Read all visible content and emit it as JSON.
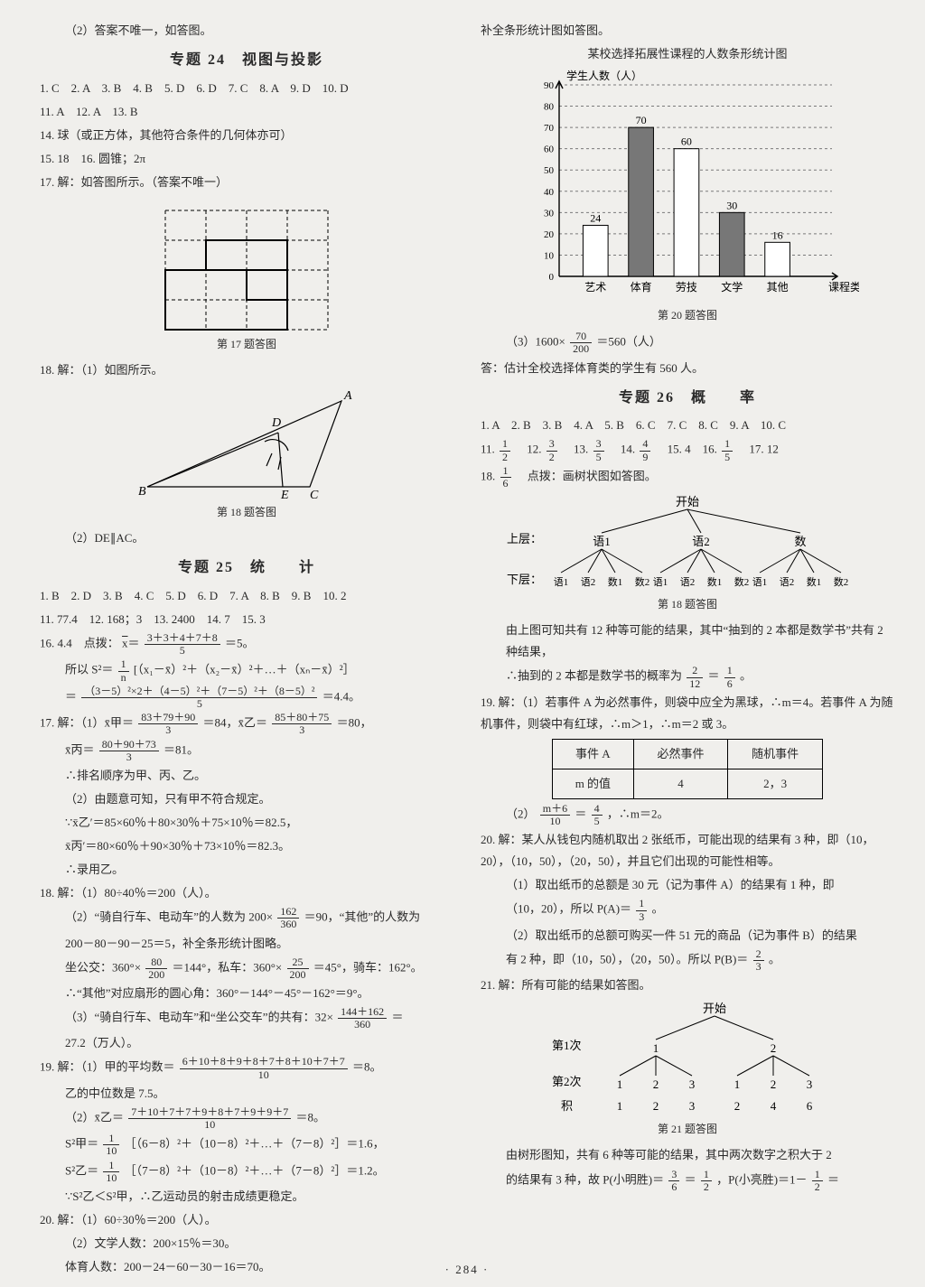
{
  "left": {
    "line0": "（2）答案不唯一，如答图。",
    "title24": "专题 24　视图与投影",
    "ans24a": "1. C　2. A　3. B　4. B　5. D　6. D　7. C　8. A　9. D　10. D",
    "ans24b": "11. A　12. A　13. B",
    "ans24c": "14. 球（或正方体，其他符合条件的几何体亦可）",
    "ans24d": "15. 18　16. 圆锥；2π",
    "ans24e": "17. 解：如答图所示。（答案不唯一）",
    "cap17": "第 17 题答图",
    "ans24f": "18. 解：（1）如图所示。",
    "cap18": "第 18 题答图",
    "ans24g": "（2）DE∥AC。",
    "title25": "专题 25　统　　计",
    "ans25a": "1. B　2. D　3. B　4. C　5. D　6. D　7. A　8. B　9. B　10. 2",
    "ans25b": "11. 77.4　12. 168；3　13. 2400　14. 7　15. 3",
    "q16a": "16. 4.4　点拨：",
    "q16a2": "＝5。",
    "q16_xbar_num": "3＋3＋4＋7＋8",
    "q16_xbar_den": "5",
    "q16b_pre": "所以 S²＝",
    "q16b_num": "1",
    "q16b_den": "n",
    "q16b_tail": " [（x₁－x̄）²＋（x₂－x̄）²＋…＋（xₙ－x̄）²］",
    "q16c_num": "（3－5）²×2＋（4－5）²＋（7－5）²＋（8－5）²",
    "q16c_den": "5",
    "q16c_tail": "＝4.4。",
    "q17a_pre": "17. 解：（1）x̄甲＝",
    "q17a_num": "83＋79＋90",
    "q17a_den": "3",
    "q17a_mid": "＝84，x̄乙＝",
    "q17a_num2": "85＋80＋75",
    "q17a_den2": "3",
    "q17a_tail": "＝80，",
    "q17b_pre": "x̄丙＝",
    "q17b_num": "80＋90＋73",
    "q17b_den": "3",
    "q17b_tail": "＝81。",
    "q17c": "∴排名顺序为甲、丙、乙。",
    "q17d": "（2）由题意可知，只有甲不符合规定。",
    "q17e": "∵x̄乙′＝85×60％＋80×30％＋75×10％＝82.5，",
    "q17f": "x̄丙′＝80×60％＋90×30％＋73×10％＝82.3。",
    "q17g": "∴录用乙。",
    "q18a": "18. 解：（1）80÷40％＝200（人）。",
    "q18b_pre": "（2）“骑自行车、电动车”的人数为 200×",
    "q18b_num": "162",
    "q18b_den": "360",
    "q18b_tail": "＝90，“其他”的人数为",
    "q18c": "200－80－90－25＝5，补全条形统计图略。",
    "q18d_pre": "坐公交：360°×",
    "q18d_num": "80",
    "q18d_den": "200",
    "q18d_mid": "＝144°，私车：360°×",
    "q18d_num2": "25",
    "q18d_den2": "200",
    "q18d_tail": "＝45°，骑车：162°。",
    "q18e": "∴“其他”对应扇形的圆心角：360°－144°－45°－162°＝9°。",
    "q18f_pre": "（3）“骑自行车、电动车”和“坐公交车”的共有：32×",
    "q18f_num": "144＋162",
    "q18f_den": "360",
    "q18f_tail": "＝",
    "q18g": "27.2（万人）。",
    "q19a_pre": "19. 解：（1）甲的平均数＝",
    "q19a_num": "6＋10＋8＋9＋8＋7＋8＋10＋7＋7",
    "q19a_den": "10",
    "q19a_tail": "＝8。",
    "q19b": "乙的中位数是 7.5。",
    "q19c_pre": "（2）x̄乙＝",
    "q19c_num": "7＋10＋7＋7＋9＋8＋7＋9＋9＋7",
    "q19c_den": "10",
    "q19c_tail": "＝8。",
    "q19d_pre": "S²甲＝",
    "q19d_num": "1",
    "q19d_den": "10",
    "q19d_tail": "［（6－8）²＋（10－8）²＋…＋（7－8）²］＝1.6，",
    "q19e_pre": "S²乙＝",
    "q19e_num": "1",
    "q19e_den": "10",
    "q19e_tail": "［（7－8）²＋（10－8）²＋…＋（7－8）²］＝1.2。",
    "q19f": "∵S²乙＜S²甲，∴乙运动员的射击成绩更稳定。",
    "q20a": "20. 解：（1）60÷30％＝200（人）。",
    "q20b": "（2）文学人数：200×15％＝30。",
    "q20c": "体育人数：200－24－60－30－16＝70。"
  },
  "right": {
    "line0": "补全条形统计图如答图。",
    "chartTitle": "某校选择拓展性课程的人数条形统计图",
    "yLabel": "学生人数（人）",
    "xLabel": "课程类别",
    "cap20": "第 20 题答图",
    "chart": {
      "type": "bar",
      "categories": [
        "艺术",
        "体育",
        "劳技",
        "文学",
        "其他"
      ],
      "values": [
        24,
        70,
        60,
        30,
        16
      ],
      "bar_colors": [
        "#ffffff",
        "#777777",
        "#ffffff",
        "#777777",
        "#ffffff"
      ],
      "ylim": [
        0,
        90
      ],
      "ytick_step": 10,
      "grid_color": "#7a7a7a",
      "axis_color": "#000000",
      "bar_width": 0.55,
      "label_fontsize": 12
    },
    "q20c_pre": "（3）1600×",
    "q20c_num": "70",
    "q20c_den": "200",
    "q20c_tail": "＝560（人）",
    "q20d": "答：估计全校选择体育类的学生有 560 人。",
    "title26": "专题 26　概　　率",
    "ans26a": "1. A　2. B　3. B　4. A　5. B　6. C　7. C　8. C　9. A　10. C",
    "ans26b_pre": "11. ",
    "f11n": "1",
    "f11d": "2",
    "ans26b_12": "　12. ",
    "f12n": "3",
    "f12d": "2",
    "ans26b_13": "　13. ",
    "f13n": "3",
    "f13d": "5",
    "ans26b_14": "　14. ",
    "f14n": "4",
    "f14d": "9",
    "ans26b_15": "　15. 4　16. ",
    "f16n": "1",
    "f16d": "5",
    "ans26b_17": "　17. 12",
    "q18a_pre": "18. ",
    "q18a_num": "1",
    "q18a_den": "6",
    "q18a_tail": "　点拨：画树状图如答图。",
    "tree18": {
      "root": "开始",
      "levelA": "上层：",
      "levelB": "下层：",
      "top": [
        "语1",
        "语2",
        "数"
      ],
      "bottomSet": [
        "语1",
        "语2",
        "数1",
        "数2"
      ]
    },
    "cap18r": "第 18 题答图",
    "q18b": "由上图可知共有 12 种等可能的结果，其中“抽到的 2 本都是数学书”共有 2 种结果，",
    "q18c_pre": "∴抽到的 2 本都是数学书的概率为",
    "q18c_num": "2",
    "q18c_den": "12",
    "q18c_mid": "＝",
    "q18c_num2": "1",
    "q18c_den2": "6",
    "q18c_tail": "。",
    "q19a": "19. 解：（1）若事件 A 为必然事件，则袋中应全为黑球，∴m＝4。若事件 A 为随机事件，则袋中有红球，∴m＞1，∴m＝2 或 3。",
    "table19": {
      "headers": [
        "事件 A",
        "必然事件",
        "随机事件"
      ],
      "row": [
        "m 的值",
        "4",
        "2，3"
      ]
    },
    "q19b_pre": "（2）",
    "q19b_num": "m＋6",
    "q19b_den": "10",
    "q19b_mid": "＝",
    "q19b_num2": "4",
    "q19b_den2": "5",
    "q19b_tail": "，∴m＝2。",
    "q20a": "20. 解：某人从钱包内随机取出 2 张纸币，可能出现的结果有 3 种，即（10，20），（10，50），（20，50），并且它们出现的可能性相等。",
    "q20b": "（1）取出纸币的总额是 30 元（记为事件 A）的结果有 1 种，即",
    "q20b2_pre": "（10，20），所以 P(A)＝",
    "q20b2_num": "1",
    "q20b2_den": "3",
    "q20b2_tail": "。",
    "q20c2": "（2）取出纸币的总额可购买一件 51 元的商品（记为事件 B）的结果",
    "q20c3_pre": "有 2 种，即（10，50），（20，50）。所以 P(B)＝",
    "q20c3_num": "2",
    "q20c3_den": "3",
    "q20c3_tail": "。",
    "q21a": "21. 解：所有可能的结果如答图。",
    "tree21": {
      "root": "开始",
      "row1lbl": "第1次",
      "row2lbl": "第2次",
      "row3lbl": "积",
      "top": [
        "1",
        "2"
      ],
      "mid": [
        "1",
        "2",
        "3",
        "1",
        "2",
        "3"
      ],
      "prod": [
        "1",
        "2",
        "3",
        "2",
        "4",
        "6"
      ]
    },
    "cap21": "第 21 题答图",
    "q21b": "由树形图知，共有 6 种等可能的结果，其中两次数字之积大于 2",
    "q21c_pre": "的结果有 3 种，故 P(小明胜)＝",
    "q21c_num": "3",
    "q21c_den": "6",
    "q21c_mid": "＝",
    "q21c_num2": "1",
    "q21c_den2": "2",
    "q21c_mid2": "，P(小亮胜)＝1－",
    "q21c_num3": "1",
    "q21c_den3": "2",
    "q21c_tail": "＝"
  },
  "footer": "· 284 ·"
}
